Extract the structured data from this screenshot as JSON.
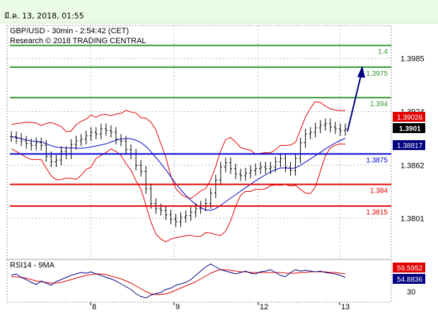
{
  "header": {
    "date_text": "มี.ค. 13, 2018, 01:55"
  },
  "chart_data": {
    "type": "line",
    "title": "GBP/USD - 30min - 2:54:42 (CET)",
    "subtitle": "Research © 2018 TRADING CENTRAL",
    "ylim": [
      1.3754,
      1.4023
    ],
    "y_ticks": [
      "1.3985",
      "1.3924",
      "1.3862",
      "1.3801"
    ],
    "x_ticks": [
      "8",
      "9",
      "12",
      "13"
    ],
    "current_price": "1.3901",
    "upper_band_label": "1.39026",
    "mid_band_label": "1.38817",
    "levels": [
      {
        "value": 1.4,
        "label": "1.4",
        "color": "#339933",
        "kind": "resistance"
      },
      {
        "value": 1.3975,
        "label": "1.3975",
        "color": "#339933",
        "kind": "resistance"
      },
      {
        "value": 1.394,
        "label": "1.394",
        "color": "#339933",
        "kind": "resistance"
      },
      {
        "value": 1.3875,
        "label": "1.3875",
        "color": "#0000cc",
        "kind": "pivot"
      },
      {
        "value": 1.384,
        "label": "1.384",
        "color": "#e00000",
        "kind": "support"
      },
      {
        "value": 1.3815,
        "label": "1.3815",
        "color": "#e00000",
        "kind": "support"
      }
    ],
    "price_series": [
      1.3895,
      1.3893,
      1.389,
      1.3887,
      1.3885,
      1.3888,
      1.3885,
      1.3872,
      1.3866,
      1.3868,
      1.3878,
      1.3875,
      1.3886,
      1.389,
      1.3892,
      1.3896,
      1.39,
      1.3898,
      1.3904,
      1.3902,
      1.39,
      1.3892,
      1.389,
      1.388,
      1.3875,
      1.3862,
      1.3855,
      1.3835,
      1.3818,
      1.3812,
      1.381,
      1.3805,
      1.38,
      1.3797,
      1.3802,
      1.3804,
      1.3808,
      1.3812,
      1.3815,
      1.3818,
      1.383,
      1.3845,
      1.386,
      1.3865,
      1.3858,
      1.3852,
      1.385,
      1.3853,
      1.3856,
      1.3858,
      1.386,
      1.3858,
      1.386,
      1.3866,
      1.387,
      1.386,
      1.3856,
      1.387,
      1.3888,
      1.3898,
      1.39,
      1.3905,
      1.3908,
      1.391,
      1.3906,
      1.3904,
      1.3902,
      1.3904
    ],
    "forecast": {
      "from": 1.3901,
      "to": 1.3975
    },
    "rsi": {
      "label": "RSI14 - 9MA",
      "rsi_value": "54.8836",
      "ma_value": "59.5952",
      "rsi_series": [
        58,
        60,
        55,
        52,
        48,
        45,
        50,
        47,
        44,
        49,
        52,
        55,
        58,
        60,
        62,
        61,
        63,
        60,
        58,
        55,
        53,
        50,
        46,
        42,
        38,
        32,
        28,
        26,
        30,
        32,
        34,
        38,
        40,
        44,
        46,
        48,
        52,
        58,
        64,
        70,
        74,
        70,
        66,
        64,
        62,
        60,
        62,
        64,
        61,
        60,
        63,
        64,
        66,
        62,
        58,
        56,
        62,
        66,
        64,
        65,
        64,
        63,
        64,
        62,
        61,
        60,
        58,
        55
      ],
      "ma_series": [
        56,
        56,
        55,
        54,
        52,
        50,
        49,
        48,
        47,
        47,
        48,
        50,
        52,
        54,
        56,
        58,
        59,
        60,
        60,
        59,
        57,
        55,
        53,
        50,
        47,
        43,
        39,
        35,
        32,
        31,
        31,
        32,
        34,
        37,
        40,
        43,
        46,
        49,
        53,
        57,
        61,
        64,
        66,
        66,
        65,
        64,
        63,
        63,
        62,
        62,
        62,
        62,
        62,
        62,
        62,
        61,
        61,
        61,
        62,
        62,
        63,
        63,
        63,
        63,
        62,
        62,
        61,
        60
      ]
    }
  }
}
